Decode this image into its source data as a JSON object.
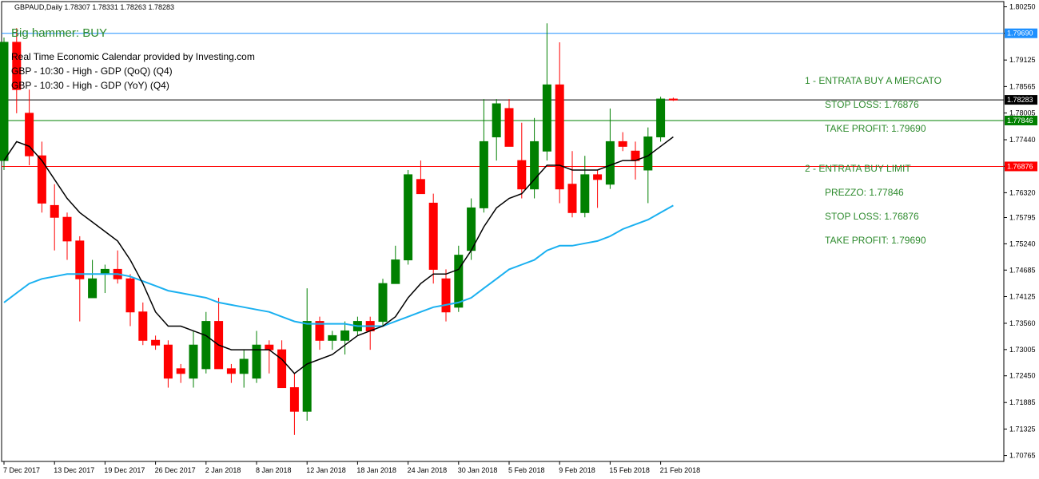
{
  "header": {
    "text": "GBPAUD,Daily  1.78307 1.78331 1.78263 1.78283"
  },
  "signal": {
    "text": "Big hammer: BUY",
    "color": "#2e8b2e"
  },
  "calendar": {
    "title": "Real Time Economic Calendar provided by Investing.com",
    "events": [
      "GBP - 10:30 - High - GDP (QoQ) (Q4)",
      "GBP - 10:30 - High - GDP (YoY) (Q4)"
    ]
  },
  "annotations": {
    "color": "#2e8b2e",
    "plan1_title": "1 - ENTRATA BUY A MERCATO",
    "plan1_sl": "STOP LOSS: 1.76876",
    "plan1_tp": "TAKE PROFIT: 1.79690",
    "plan2_title": "2 - ENTRATA BUY LIMIT",
    "plan2_price": "PREZZO: 1.77846",
    "plan2_sl": "STOP LOSS: 1.76876",
    "plan2_tp": "TAKE PROFIT: 1.79690"
  },
  "chart_data": {
    "type": "candlestick",
    "symbol": "GBPAUD",
    "timeframe": "Daily",
    "ylim": [
      1.7064,
      1.8036
    ],
    "y_ticks": [
      "1.80250",
      "1.79690",
      "1.79125",
      "1.78565",
      "1.78005",
      "1.77440",
      "1.76880",
      "1.76320",
      "1.75795",
      "1.75240",
      "1.74685",
      "1.74125",
      "1.73560",
      "1.73005",
      "1.72450",
      "1.71885",
      "1.71325",
      "1.70765"
    ],
    "x_ticks": [
      "7 Dec 2017",
      "13 Dec 2017",
      "19 Dec 2017",
      "26 Dec 2017",
      "2 Jan 2018",
      "8 Jan 2018",
      "12 Jan 2018",
      "18 Jan 2018",
      "24 Jan 2018",
      "30 Jan 2018",
      "5 Feb 2018",
      "9 Feb 2018",
      "15 Feb 2018",
      "21 Feb 2018"
    ],
    "candles": [
      {
        "o": 1.77,
        "h": 1.796,
        "l": 1.768,
        "c": 1.795
      },
      {
        "o": 1.795,
        "h": 1.798,
        "l": 1.78,
        "c": 1.785
      },
      {
        "o": 1.78,
        "h": 1.785,
        "l": 1.769,
        "c": 1.771
      },
      {
        "o": 1.771,
        "h": 1.774,
        "l": 1.759,
        "c": 1.761
      },
      {
        "o": 1.7605,
        "h": 1.765,
        "l": 1.751,
        "c": 1.758
      },
      {
        "o": 1.758,
        "h": 1.759,
        "l": 1.749,
        "c": 1.753
      },
      {
        "o": 1.753,
        "h": 1.754,
        "l": 1.736,
        "c": 1.745
      },
      {
        "o": 1.741,
        "h": 1.749,
        "l": 1.741,
        "c": 1.745
      },
      {
        "o": 1.746,
        "h": 1.748,
        "l": 1.742,
        "c": 1.747
      },
      {
        "o": 1.747,
        "h": 1.751,
        "l": 1.744,
        "c": 1.745
      },
      {
        "o": 1.745,
        "h": 1.746,
        "l": 1.735,
        "c": 1.738
      },
      {
        "o": 1.738,
        "h": 1.74,
        "l": 1.731,
        "c": 1.732
      },
      {
        "o": 1.732,
        "h": 1.733,
        "l": 1.73,
        "c": 1.731
      },
      {
        "o": 1.731,
        "h": 1.732,
        "l": 1.722,
        "c": 1.724
      },
      {
        "o": 1.726,
        "h": 1.727,
        "l": 1.723,
        "c": 1.725
      },
      {
        "o": 1.724,
        "h": 1.734,
        "l": 1.722,
        "c": 1.731
      },
      {
        "o": 1.726,
        "h": 1.738,
        "l": 1.725,
        "c": 1.736
      },
      {
        "o": 1.736,
        "h": 1.741,
        "l": 1.726,
        "c": 1.726
      },
      {
        "o": 1.726,
        "h": 1.727,
        "l": 1.723,
        "c": 1.725
      },
      {
        "o": 1.725,
        "h": 1.73,
        "l": 1.722,
        "c": 1.728
      },
      {
        "o": 1.724,
        "h": 1.734,
        "l": 1.723,
        "c": 1.731
      },
      {
        "o": 1.731,
        "h": 1.732,
        "l": 1.725,
        "c": 1.73
      },
      {
        "o": 1.73,
        "h": 1.732,
        "l": 1.722,
        "c": 1.722
      },
      {
        "o": 1.722,
        "h": 1.725,
        "l": 1.712,
        "c": 1.717
      },
      {
        "o": 1.717,
        "h": 1.743,
        "l": 1.715,
        "c": 1.736
      },
      {
        "o": 1.736,
        "h": 1.737,
        "l": 1.73,
        "c": 1.732
      },
      {
        "o": 1.732,
        "h": 1.734,
        "l": 1.73,
        "c": 1.733
      },
      {
        "o": 1.732,
        "h": 1.736,
        "l": 1.729,
        "c": 1.734
      },
      {
        "o": 1.734,
        "h": 1.737,
        "l": 1.733,
        "c": 1.736
      },
      {
        "o": 1.736,
        "h": 1.737,
        "l": 1.73,
        "c": 1.734
      },
      {
        "o": 1.736,
        "h": 1.745,
        "l": 1.735,
        "c": 1.744
      },
      {
        "o": 1.744,
        "h": 1.752,
        "l": 1.744,
        "c": 1.749
      },
      {
        "o": 1.749,
        "h": 1.768,
        "l": 1.748,
        "c": 1.767
      },
      {
        "o": 1.766,
        "h": 1.77,
        "l": 1.763,
        "c": 1.763
      },
      {
        "o": 1.761,
        "h": 1.763,
        "l": 1.744,
        "c": 1.747
      },
      {
        "o": 1.745,
        "h": 1.747,
        "l": 1.736,
        "c": 1.738
      },
      {
        "o": 1.739,
        "h": 1.752,
        "l": 1.738,
        "c": 1.75
      },
      {
        "o": 1.751,
        "h": 1.762,
        "l": 1.749,
        "c": 1.76
      },
      {
        "o": 1.76,
        "h": 1.783,
        "l": 1.759,
        "c": 1.774
      },
      {
        "o": 1.775,
        "h": 1.783,
        "l": 1.77,
        "c": 1.782
      },
      {
        "o": 1.781,
        "h": 1.783,
        "l": 1.773,
        "c": 1.773
      },
      {
        "o": 1.77,
        "h": 1.778,
        "l": 1.762,
        "c": 1.764
      },
      {
        "o": 1.764,
        "h": 1.779,
        "l": 1.762,
        "c": 1.774
      },
      {
        "o": 1.772,
        "h": 1.799,
        "l": 1.77,
        "c": 1.786
      },
      {
        "o": 1.786,
        "h": 1.795,
        "l": 1.761,
        "c": 1.764
      },
      {
        "o": 1.765,
        "h": 1.772,
        "l": 1.758,
        "c": 1.759
      },
      {
        "o": 1.759,
        "h": 1.771,
        "l": 1.758,
        "c": 1.767
      },
      {
        "o": 1.767,
        "h": 1.768,
        "l": 1.76,
        "c": 1.766
      },
      {
        "o": 1.765,
        "h": 1.781,
        "l": 1.764,
        "c": 1.774
      },
      {
        "o": 1.774,
        "h": 1.776,
        "l": 1.772,
        "c": 1.773
      },
      {
        "o": 1.772,
        "h": 1.774,
        "l": 1.766,
        "c": 1.77
      },
      {
        "o": 1.768,
        "h": 1.777,
        "l": 1.761,
        "c": 1.775
      },
      {
        "o": 1.775,
        "h": 1.7835,
        "l": 1.774,
        "c": 1.783
      },
      {
        "o": 1.783,
        "h": 1.7833,
        "l": 1.7826,
        "c": 1.7828
      }
    ],
    "fast_ma": [
      1.77,
      1.774,
      1.773,
      1.77,
      1.766,
      1.762,
      1.759,
      1.757,
      1.755,
      1.753,
      1.749,
      1.744,
      1.738,
      1.735,
      1.735,
      1.734,
      1.733,
      1.731,
      1.73,
      1.73,
      1.73,
      1.73,
      1.728,
      1.725,
      1.727,
      1.728,
      1.729,
      1.731,
      1.733,
      1.734,
      1.735,
      1.737,
      1.741,
      1.744,
      1.746,
      1.746,
      1.747,
      1.751,
      1.756,
      1.76,
      1.762,
      1.763,
      1.766,
      1.769,
      1.769,
      1.768,
      1.768,
      1.768,
      1.769,
      1.77,
      1.77,
      1.771,
      1.773,
      1.775
    ],
    "slow_ma": [
      1.74,
      1.742,
      1.744,
      1.745,
      1.7455,
      1.746,
      1.746,
      1.746,
      1.746,
      1.746,
      1.7455,
      1.7445,
      1.7435,
      1.7425,
      1.742,
      1.7415,
      1.741,
      1.74,
      1.7395,
      1.739,
      1.7385,
      1.738,
      1.737,
      1.736,
      1.7355,
      1.7355,
      1.7355,
      1.7355,
      1.735,
      1.735,
      1.735,
      1.736,
      1.737,
      1.738,
      1.739,
      1.7395,
      1.74,
      1.741,
      1.743,
      1.745,
      1.747,
      1.748,
      1.749,
      1.751,
      1.752,
      1.752,
      1.7525,
      1.753,
      1.754,
      1.7555,
      1.7565,
      1.7575,
      1.759,
      1.7605
    ],
    "levels": [
      {
        "value": 1.7969,
        "label": "1.79690",
        "color": "#1e90ff",
        "kind": "take-profit"
      },
      {
        "value": 1.78283,
        "label": "1.78283",
        "color": "#000000",
        "kind": "current-price"
      },
      {
        "value": 1.77846,
        "label": "1.77846",
        "color": "#008000",
        "kind": "entry-limit"
      },
      {
        "value": 1.76876,
        "label": "1.76876",
        "color": "#ff0000",
        "kind": "stop-loss"
      }
    ],
    "colors": {
      "bull": "#008000",
      "bear": "#ff0000",
      "fast_ma": "#000000",
      "slow_ma": "#1ab0f0"
    }
  }
}
